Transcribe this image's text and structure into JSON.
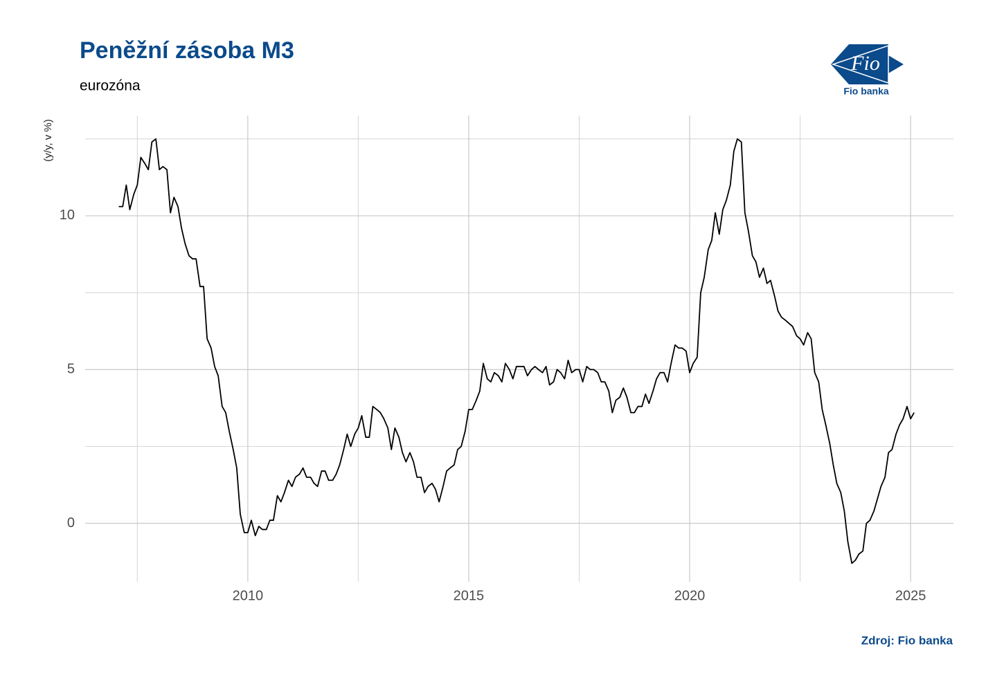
{
  "chart_data": {
    "type": "line",
    "title": "Peněžní zásoba M3",
    "subtitle": "eurozóna",
    "y_label": "(y/y, v %)",
    "source": "Zdroj: Fio banka",
    "logo_mark": "Fio",
    "logo_text": "Fio banka",
    "x": [
      2007.08,
      2007.17,
      2007.25,
      2007.33,
      2007.42,
      2007.5,
      2007.58,
      2007.67,
      2007.75,
      2007.83,
      2007.92,
      2008,
      2008.08,
      2008.17,
      2008.25,
      2008.33,
      2008.42,
      2008.5,
      2008.58,
      2008.67,
      2008.75,
      2008.83,
      2008.92,
      2009,
      2009.08,
      2009.17,
      2009.25,
      2009.33,
      2009.42,
      2009.5,
      2009.58,
      2009.67,
      2009.75,
      2009.83,
      2009.92,
      2010,
      2010.08,
      2010.17,
      2010.25,
      2010.33,
      2010.42,
      2010.5,
      2010.58,
      2010.67,
      2010.75,
      2010.83,
      2010.92,
      2011,
      2011.08,
      2011.17,
      2011.25,
      2011.33,
      2011.42,
      2011.5,
      2011.58,
      2011.67,
      2011.75,
      2011.83,
      2011.92,
      2012,
      2012.08,
      2012.17,
      2012.25,
      2012.33,
      2012.42,
      2012.5,
      2012.58,
      2012.67,
      2012.75,
      2012.83,
      2012.92,
      2013,
      2013.08,
      2013.17,
      2013.25,
      2013.33,
      2013.42,
      2013.5,
      2013.58,
      2013.67,
      2013.75,
      2013.83,
      2013.92,
      2014,
      2014.08,
      2014.17,
      2014.25,
      2014.33,
      2014.42,
      2014.5,
      2014.58,
      2014.67,
      2014.75,
      2014.83,
      2014.92,
      2015,
      2015.08,
      2015.17,
      2015.25,
      2015.33,
      2015.42,
      2015.5,
      2015.58,
      2015.67,
      2015.75,
      2015.83,
      2015.92,
      2016,
      2016.08,
      2016.17,
      2016.25,
      2016.33,
      2016.42,
      2016.5,
      2016.58,
      2016.67,
      2016.75,
      2016.83,
      2016.92,
      2017,
      2017.08,
      2017.17,
      2017.25,
      2017.33,
      2017.42,
      2017.5,
      2017.58,
      2017.67,
      2017.75,
      2017.83,
      2017.92,
      2018,
      2018.08,
      2018.17,
      2018.25,
      2018.33,
      2018.42,
      2018.5,
      2018.58,
      2018.67,
      2018.75,
      2018.83,
      2018.92,
      2019,
      2019.08,
      2019.17,
      2019.25,
      2019.33,
      2019.42,
      2019.5,
      2019.58,
      2019.67,
      2019.75,
      2019.83,
      2019.92,
      2020,
      2020.08,
      2020.17,
      2020.25,
      2020.33,
      2020.42,
      2020.5,
      2020.58,
      2020.67,
      2020.75,
      2020.83,
      2020.92,
      2021,
      2021.08,
      2021.17,
      2021.25,
      2021.33,
      2021.42,
      2021.5,
      2021.58,
      2021.67,
      2021.75,
      2021.83,
      2021.92,
      2022,
      2022.08,
      2022.17,
      2022.25,
      2022.33,
      2022.42,
      2022.5,
      2022.58,
      2022.67,
      2022.75,
      2022.83,
      2022.92,
      2023,
      2023.08,
      2023.17,
      2023.25,
      2023.33,
      2023.42,
      2023.5,
      2023.58,
      2023.67,
      2023.75,
      2023.83,
      2023.92,
      2024,
      2024.08,
      2024.17,
      2024.25,
      2024.33,
      2024.42,
      2024.5,
      2024.58,
      2024.67,
      2024.75,
      2024.83,
      2024.92,
      2025,
      2025.08
    ],
    "series": [
      {
        "color": "#000000",
        "values": [
          10.3,
          10.3,
          11.0,
          10.2,
          10.7,
          11.0,
          11.9,
          11.7,
          11.5,
          12.4,
          12.5,
          11.5,
          11.6,
          11.5,
          10.1,
          10.6,
          10.3,
          9.6,
          9.1,
          8.7,
          8.6,
          8.6,
          7.7,
          7.7,
          6.0,
          5.7,
          5.1,
          4.8,
          3.8,
          3.6,
          3.0,
          2.4,
          1.8,
          0.3,
          -0.3,
          -0.3,
          0.1,
          -0.4,
          -0.1,
          -0.2,
          -0.2,
          0.1,
          0.1,
          0.9,
          0.7,
          1.0,
          1.4,
          1.2,
          1.5,
          1.6,
          1.8,
          1.5,
          1.5,
          1.3,
          1.2,
          1.7,
          1.7,
          1.4,
          1.4,
          1.6,
          1.9,
          2.4,
          2.9,
          2.5,
          2.9,
          3.1,
          3.5,
          2.8,
          2.8,
          3.8,
          3.7,
          3.6,
          3.4,
          3.1,
          2.4,
          3.1,
          2.8,
          2.3,
          2.0,
          2.3,
          2.0,
          1.5,
          1.5,
          1.0,
          1.2,
          1.3,
          1.1,
          0.7,
          1.2,
          1.7,
          1.8,
          1.9,
          2.4,
          2.5,
          3.0,
          3.7,
          3.7,
          4.0,
          4.3,
          5.2,
          4.7,
          4.6,
          4.9,
          4.8,
          4.6,
          5.2,
          5.0,
          4.7,
          5.1,
          5.1,
          5.1,
          4.8,
          5.0,
          5.1,
          5.0,
          4.9,
          5.1,
          4.5,
          4.6,
          5.0,
          4.9,
          4.7,
          5.3,
          4.9,
          5.0,
          5.0,
          4.6,
          5.1,
          5.0,
          5.0,
          4.9,
          4.6,
          4.6,
          4.3,
          3.6,
          4.0,
          4.1,
          4.4,
          4.1,
          3.6,
          3.6,
          3.8,
          3.8,
          4.2,
          3.9,
          4.3,
          4.7,
          4.9,
          4.9,
          4.6,
          5.2,
          5.8,
          5.7,
          5.7,
          5.6,
          4.9,
          5.2,
          5.4,
          7.5,
          8.0,
          8.9,
          9.2,
          10.1,
          9.4,
          10.2,
          10.5,
          11.0,
          12.1,
          12.5,
          12.4,
          10.1,
          9.5,
          8.7,
          8.5,
          8.0,
          8.3,
          7.8,
          7.9,
          7.4,
          6.9,
          6.7,
          6.6,
          6.5,
          6.4,
          6.1,
          6.0,
          5.8,
          6.2,
          6.0,
          4.9,
          4.6,
          3.7,
          3.2,
          2.6,
          1.9,
          1.3,
          1.0,
          0.4,
          -0.6,
          -1.3,
          -1.2,
          -1.0,
          -0.9,
          0.0,
          0.1,
          0.4,
          0.8,
          1.2,
          1.5,
          2.3,
          2.4,
          2.9,
          3.2,
          3.4,
          3.8,
          3.4,
          3.6
        ]
      }
    ],
    "xlim": [
      2006.32,
      2025.97
    ],
    "xticks": [
      2010,
      2015,
      2020,
      2025
    ],
    "xminorticks": [
      2007.5,
      2012.5,
      2017.5,
      2022.5
    ],
    "ylim": [
      -1.9,
      13.26
    ],
    "yticks": [
      0,
      5,
      10
    ],
    "yminorticks": [
      2.5,
      7.5,
      12.5
    ],
    "grid": true
  }
}
